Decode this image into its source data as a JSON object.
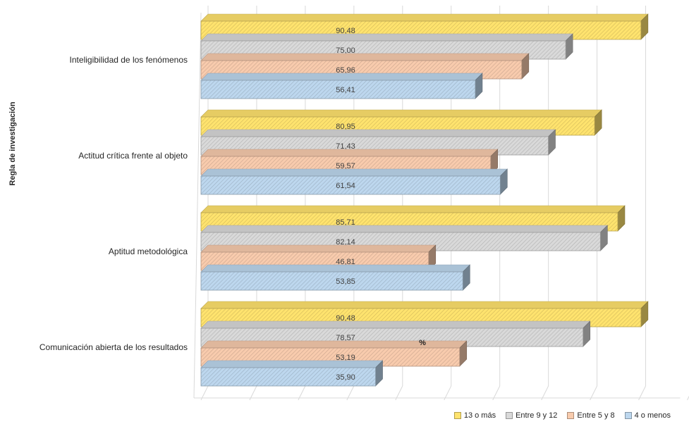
{
  "chart_data": {
    "type": "bar",
    "orientation": "horizontal",
    "style": "3d-clustered",
    "title": "",
    "ylabel": "Regla de investigación",
    "xlabel": "%",
    "xlim": [
      0,
      100
    ],
    "grid": true,
    "legend_position": "bottom-right",
    "categories": [
      "Inteligibilidad de los fenómenos",
      "Actitud crítica frente al objeto",
      "Aptitud metodológica",
      "Comunicación abierta de los resultados"
    ],
    "series": [
      {
        "name": "13 o más",
        "color": "#FFE36E",
        "values": [
          90.48,
          80.95,
          85.71,
          90.48
        ],
        "labels": [
          "90,48",
          "80,95",
          "85,71",
          "90,48"
        ]
      },
      {
        "name": "Entre 9 y 12",
        "color": "#D9D9D9",
        "values": [
          75.0,
          71.43,
          82.14,
          78.57
        ],
        "labels": [
          "75,00",
          "71,43",
          "82,14",
          "78,57"
        ]
      },
      {
        "name": "Entre 5 y 8",
        "color": "#F8CBAD",
        "values": [
          65.96,
          59.57,
          46.81,
          53.19
        ],
        "labels": [
          "65,96",
          "59,57",
          "46,81",
          "53,19"
        ]
      },
      {
        "name": "4 o menos",
        "color": "#BDD7EE",
        "values": [
          56.41,
          61.54,
          53.85,
          35.9
        ],
        "labels": [
          "56,41",
          "61,54",
          "53,85",
          "35,90"
        ]
      }
    ]
  }
}
